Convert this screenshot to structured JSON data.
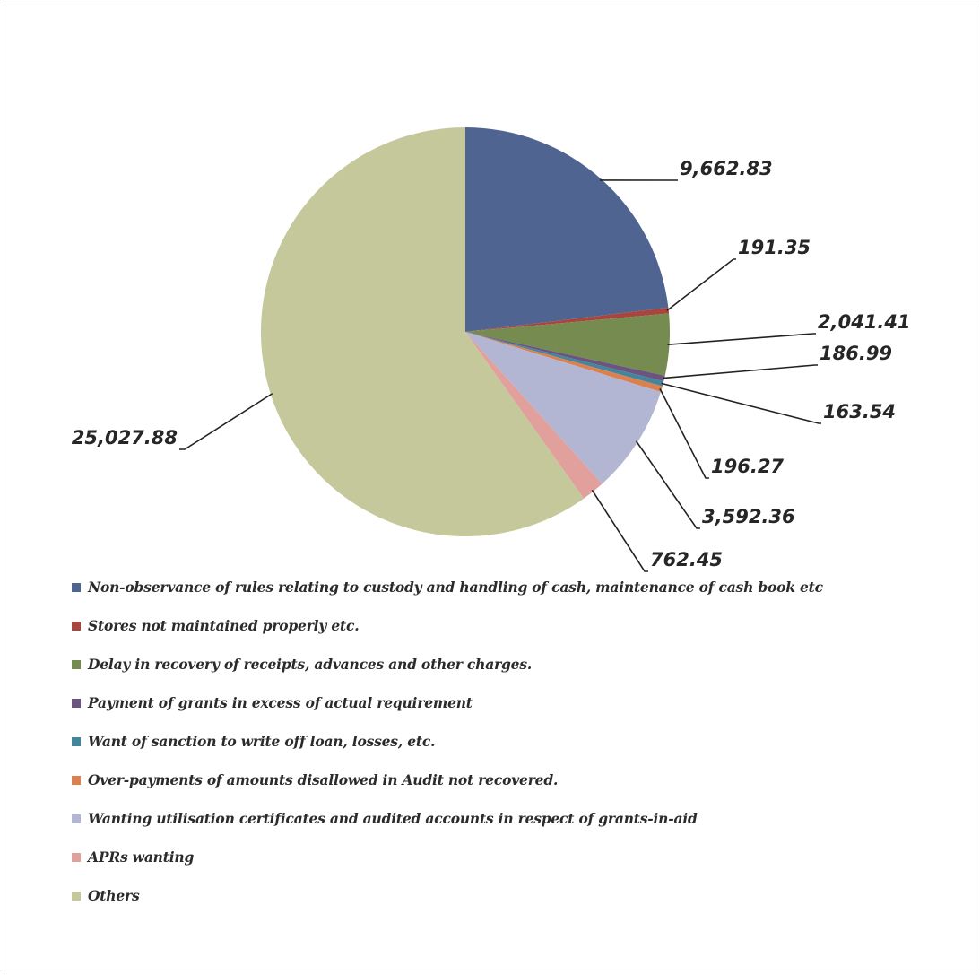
{
  "chart_data": {
    "type": "pie",
    "title": "",
    "legend_position": "bottom",
    "slices": [
      {
        "label": "Non-observance of rules relating to custody and handling of cash, maintenance of cash book etc",
        "value": 9662.83,
        "value_label": "9,662.83",
        "color": "#4f6490"
      },
      {
        "label": "Stores not maintained properly etc.",
        "value": 191.35,
        "value_label": "191.35",
        "color": "#a8453f"
      },
      {
        "label": "Delay in recovery of receipts, advances and other charges.",
        "value": 2041.41,
        "value_label": "2,041.41",
        "color": "#758b4f"
      },
      {
        "label": "Payment of grants in excess of actual requirement",
        "value": 186.99,
        "value_label": "186.99",
        "color": "#6a5480"
      },
      {
        "label": "Want of sanction to write off loan, losses, etc.",
        "value": 163.54,
        "value_label": "163.54",
        "color": "#43859b"
      },
      {
        "label": "Over-payments of amounts disallowed in Audit not recovered.",
        "value": 196.27,
        "value_label": "196.27",
        "color": "#dc8050"
      },
      {
        "label": "Wanting utilisation certificates and audited accounts in respect of grants-in-aid",
        "value": 3592.36,
        "value_label": "3,592.36",
        "color": "#b3b6d3"
      },
      {
        "label": "APRs wanting",
        "value": 762.45,
        "value_label": "762.45",
        "color": "#e1a09c"
      },
      {
        "label": "Others",
        "value": 25027.88,
        "value_label": "25,027.88",
        "color": "#c5c89a"
      }
    ]
  }
}
